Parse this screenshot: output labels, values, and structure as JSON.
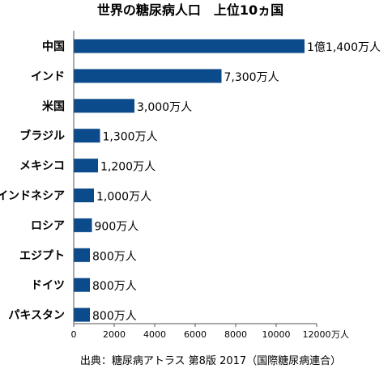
{
  "chart_data": {
    "type": "bar",
    "orientation": "horizontal",
    "title": "世界の糖尿病人口　上位10ヵ国",
    "categories": [
      "中国",
      "インド",
      "米国",
      "ブラジル",
      "メキシコ",
      "インドネシア",
      "ロシア",
      "エジプト",
      "ドイツ",
      "パキスタン"
    ],
    "values": [
      11400,
      7300,
      3000,
      1300,
      1200,
      1000,
      900,
      800,
      800,
      800
    ],
    "value_labels": [
      "1億1,400万人",
      "7,300万人",
      "3,000万人",
      "1,300万人",
      "1,200万人",
      "1,000万人",
      "900万人",
      "800万人",
      "800万人",
      "800万人"
    ],
    "xlim": [
      0,
      12000
    ],
    "xticks": [
      0,
      2000,
      4000,
      6000,
      8000,
      10000,
      12000
    ],
    "xtick_labels": [
      "0",
      "2000",
      "4000",
      "6000",
      "8000",
      "10000",
      "12000"
    ],
    "x_unit": "万人",
    "xlabel": "",
    "ylabel": "",
    "grid": false,
    "legend": "none",
    "bar_color": "#0b4a8b",
    "source": "出典：糖尿病アトラス 第8版 2017（国際糖尿病連合）"
  }
}
